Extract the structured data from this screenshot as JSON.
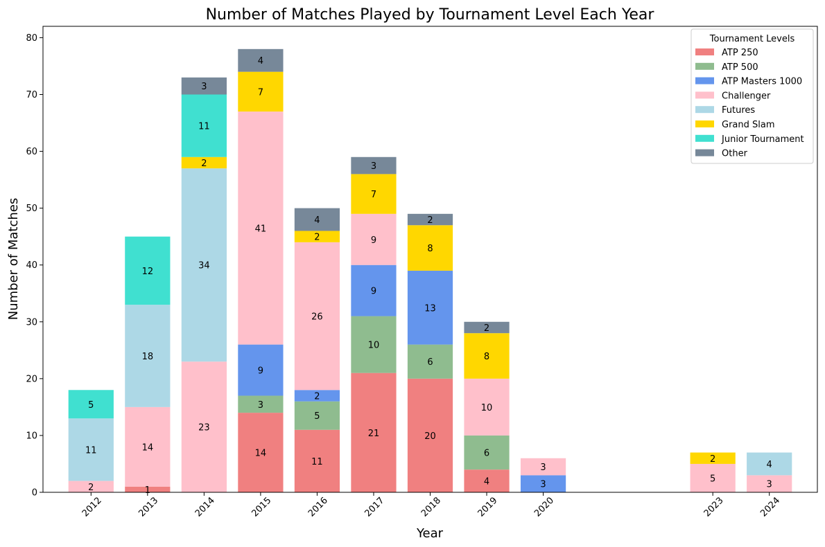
{
  "chart_data": {
    "type": "bar",
    "stacked": true,
    "title": "Number of Matches Played by Tournament Level Each Year",
    "xlabel": "Year",
    "ylabel": "Number of Matches",
    "ylim": [
      0,
      82
    ],
    "yticks": [
      0,
      10,
      20,
      30,
      40,
      50,
      60,
      70,
      80
    ],
    "categories": [
      "2012",
      "2013",
      "2014",
      "2015",
      "2016",
      "2017",
      "2018",
      "2019",
      "2020",
      "2023",
      "2024"
    ],
    "x": [
      2012,
      2013,
      2014,
      2015,
      2016,
      2017,
      2018,
      2019,
      2020,
      2023,
      2024
    ],
    "grid": false,
    "legend": {
      "title": "Tournament Levels",
      "placement": "top-right"
    },
    "series": [
      {
        "name": "ATP 250",
        "color": "#f08080",
        "values": [
          0,
          1,
          0,
          14,
          11,
          21,
          20,
          4,
          0,
          0,
          0
        ]
      },
      {
        "name": "ATP 500",
        "color": "#8fbc8f",
        "values": [
          0,
          0,
          0,
          3,
          5,
          10,
          6,
          6,
          0,
          0,
          0
        ]
      },
      {
        "name": "ATP Masters 1000",
        "color": "#6495ed",
        "values": [
          0,
          0,
          0,
          9,
          2,
          9,
          13,
          0,
          3,
          0,
          0
        ]
      },
      {
        "name": "Challenger",
        "color": "#ffc0cb",
        "values": [
          2,
          14,
          23,
          41,
          26,
          9,
          0,
          10,
          3,
          5,
          3
        ]
      },
      {
        "name": "Futures",
        "color": "#add8e6",
        "values": [
          11,
          18,
          34,
          0,
          0,
          0,
          0,
          0,
          0,
          0,
          4
        ]
      },
      {
        "name": "Grand Slam",
        "color": "#ffd700",
        "values": [
          0,
          0,
          2,
          7,
          2,
          7,
          8,
          8,
          0,
          2,
          0
        ]
      },
      {
        "name": "Junior Tournament",
        "color": "#40e0d0",
        "values": [
          5,
          12,
          11,
          0,
          0,
          0,
          0,
          0,
          0,
          0,
          0
        ]
      },
      {
        "name": "Other",
        "color": "#778899",
        "values": [
          0,
          0,
          3,
          4,
          4,
          3,
          2,
          2,
          0,
          0,
          0
        ]
      }
    ]
  }
}
